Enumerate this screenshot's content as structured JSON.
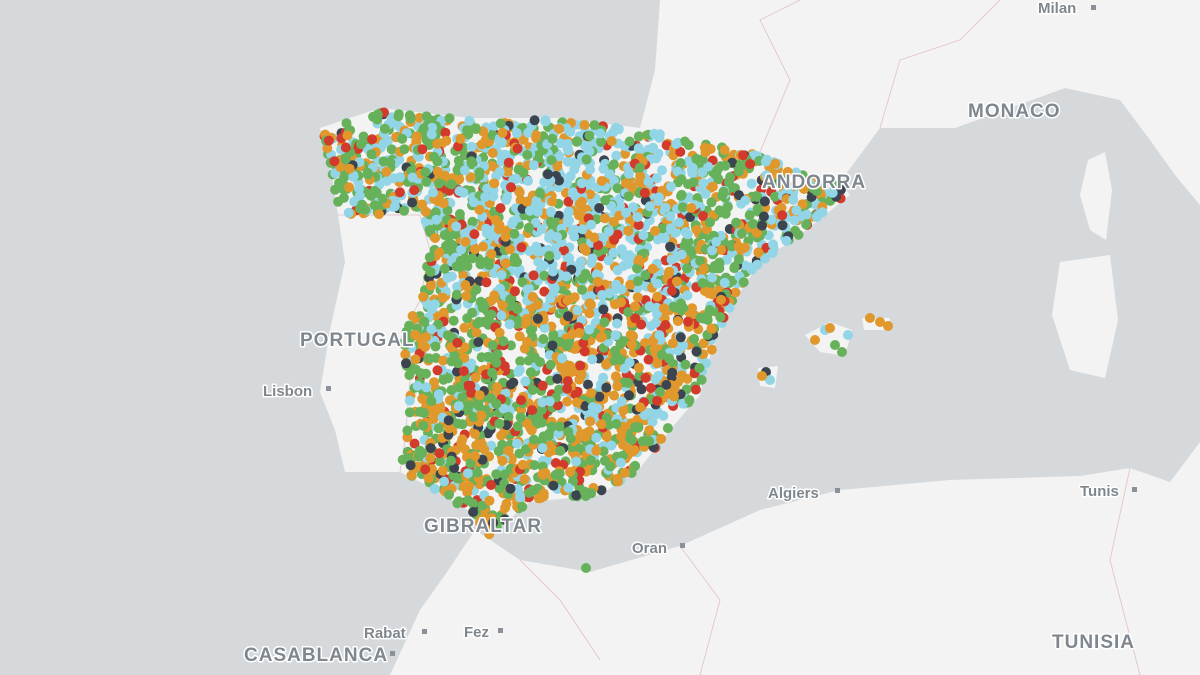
{
  "map": {
    "labels": {
      "milan": "Milan",
      "monaco": "MONACO",
      "andorra": "ANDORRA",
      "portugal": "PORTUGAL",
      "lisbon": "Lisbon",
      "gibraltar": "GIBRALTAR",
      "algiers": "Algiers",
      "oran": "Oran",
      "tunis": "Tunis",
      "rabat": "Rabat",
      "fez": "Fez",
      "casablanca": "CASABLANCA",
      "tunisia": "TUNISIA"
    }
  }
}
